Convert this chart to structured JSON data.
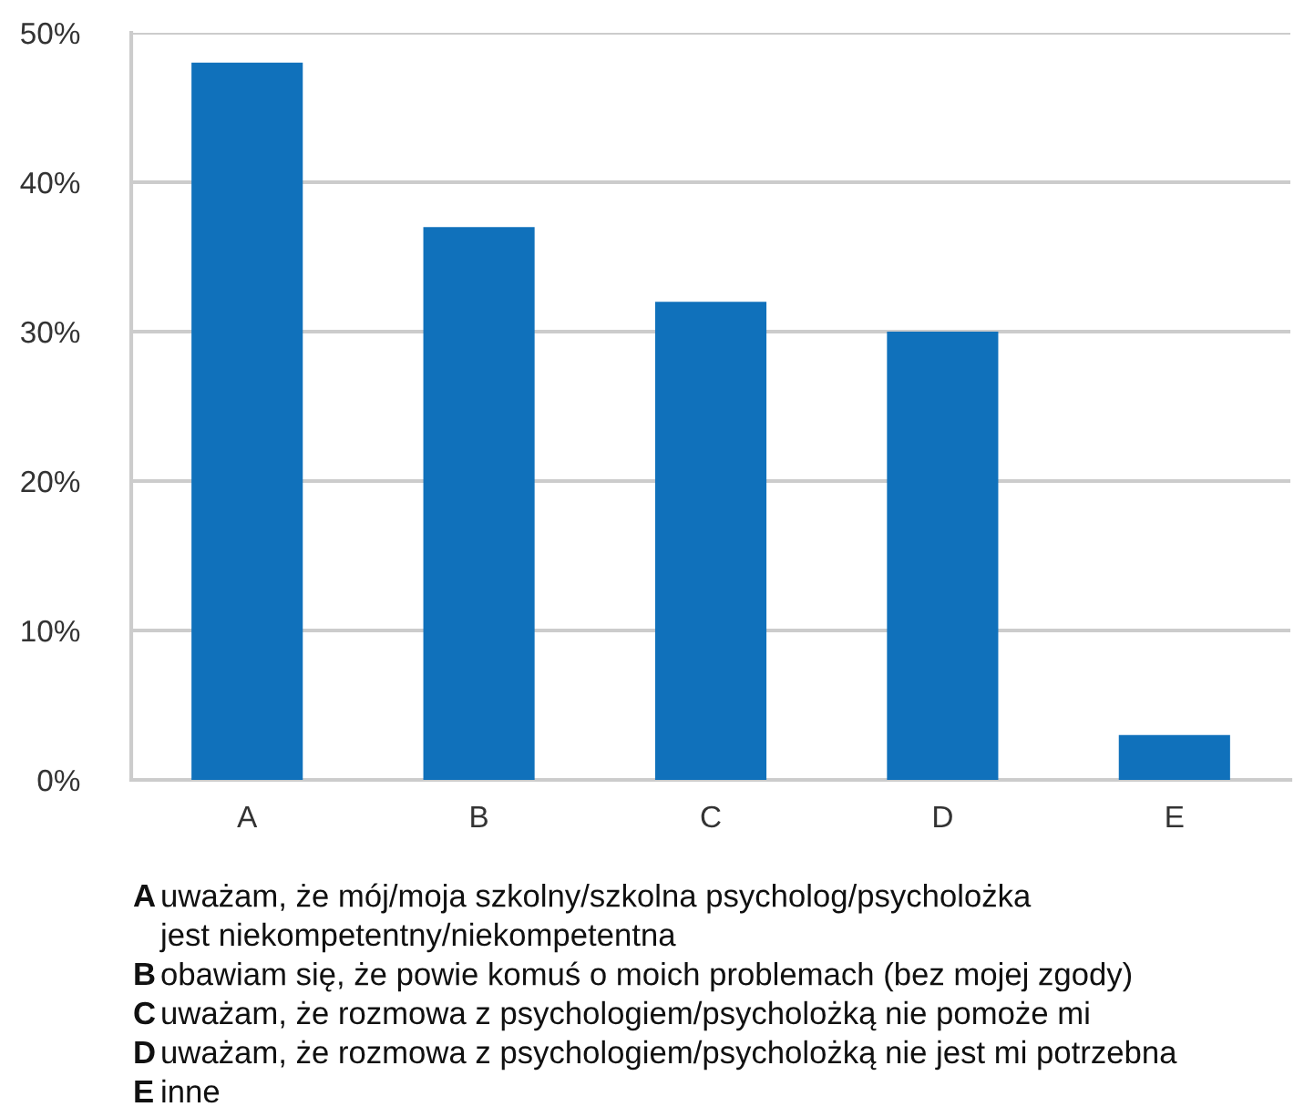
{
  "chart_data": {
    "type": "bar",
    "categories": [
      "A",
      "B",
      "C",
      "D",
      "E"
    ],
    "values": [
      48,
      37,
      32,
      30,
      3
    ],
    "color": "#1071bb",
    "ylim": [
      0,
      50
    ],
    "yticks": [
      {
        "value": 0,
        "label": "0%"
      },
      {
        "value": 10,
        "label": "10%"
      },
      {
        "value": 20,
        "label": "20%"
      },
      {
        "value": 30,
        "label": "30%"
      },
      {
        "value": 40,
        "label": "40%"
      },
      {
        "value": 50,
        "label": "50%"
      }
    ],
    "grid": "y",
    "annotations": [
      "A uważam, że mój/moja szkolny/szkolna psycholog/psycholożka\njest niekompetentny/niekompetentna",
      "B obawiam się, że powie komuś o moich problemach (bez mojej zgody)",
      "C uważam, że rozmowa z psychologiem/psycholożką nie pomoże mi",
      "D uważam, że rozmowa z psychologiem/psycholożką nie jest mi potrzebna",
      "E inne"
    ]
  }
}
